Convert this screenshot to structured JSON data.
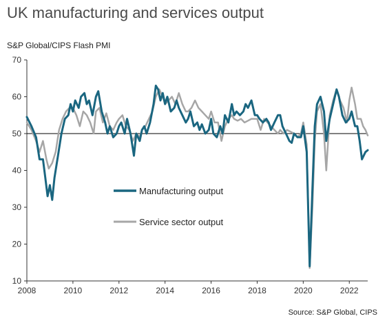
{
  "header": {
    "title": "UK manufacturing and services output",
    "subtitle": "S&P Global/CIPS Flash PMI"
  },
  "footer": {
    "source": "Source: S&P Global, CIPS"
  },
  "colors": {
    "manufacturing": "#1a6680",
    "services": "#a6a6a6",
    "axis": "#333333"
  },
  "chart_data": {
    "type": "line",
    "title": "UK manufacturing and services output",
    "subtitle": "S&P Global/CIPS Flash PMI",
    "xlabel": "",
    "ylabel": "",
    "xlim": [
      2008,
      2022.8
    ],
    "ylim": [
      10,
      70
    ],
    "y_ticks": [
      10,
      20,
      30,
      40,
      50,
      60,
      70
    ],
    "x_ticks": [
      2008,
      2010,
      2012,
      2014,
      2016,
      2018,
      2020,
      2022
    ],
    "reference_line": 50,
    "grid": false,
    "legend": "center-left",
    "series": [
      {
        "name": "Manufacturing output",
        "color": "#1a6680",
        "points": [
          [
            2008.0,
            54.5
          ],
          [
            2008.2,
            52.0
          ],
          [
            2008.4,
            49.0
          ],
          [
            2008.55,
            43.0
          ],
          [
            2008.7,
            43.0
          ],
          [
            2008.8,
            38.0
          ],
          [
            2008.9,
            33.0
          ],
          [
            2009.0,
            36.0
          ],
          [
            2009.1,
            32.0
          ],
          [
            2009.2,
            38.0
          ],
          [
            2009.35,
            44.0
          ],
          [
            2009.5,
            50.0
          ],
          [
            2009.65,
            54.0
          ],
          [
            2009.8,
            55.0
          ],
          [
            2009.9,
            58.0
          ],
          [
            2010.0,
            56.0
          ],
          [
            2010.1,
            59.0
          ],
          [
            2010.25,
            57.0
          ],
          [
            2010.35,
            60.0
          ],
          [
            2010.5,
            61.0
          ],
          [
            2010.6,
            58.0
          ],
          [
            2010.7,
            59.0
          ],
          [
            2010.85,
            55.0
          ],
          [
            2011.0,
            60.0
          ],
          [
            2011.1,
            61.5
          ],
          [
            2011.25,
            56.0
          ],
          [
            2011.4,
            53.0
          ],
          [
            2011.5,
            50.0
          ],
          [
            2011.6,
            52.0
          ],
          [
            2011.75,
            49.0
          ],
          [
            2011.9,
            50.0
          ],
          [
            2012.0,
            52.0
          ],
          [
            2012.1,
            53.0
          ],
          [
            2012.25,
            50.0
          ],
          [
            2012.35,
            54.0
          ],
          [
            2012.5,
            50.0
          ],
          [
            2012.65,
            44.0
          ],
          [
            2012.75,
            50.0
          ],
          [
            2012.9,
            48.0
          ],
          [
            2013.0,
            51.0
          ],
          [
            2013.1,
            52.0
          ],
          [
            2013.2,
            50.0
          ],
          [
            2013.35,
            53.0
          ],
          [
            2013.5,
            58.0
          ],
          [
            2013.6,
            63.0
          ],
          [
            2013.7,
            62.0
          ],
          [
            2013.8,
            59.0
          ],
          [
            2013.9,
            61.0
          ],
          [
            2014.0,
            58.0
          ],
          [
            2014.1,
            60.0
          ],
          [
            2014.25,
            56.0
          ],
          [
            2014.4,
            57.0
          ],
          [
            2014.5,
            59.0
          ],
          [
            2014.6,
            57.0
          ],
          [
            2014.75,
            55.0
          ],
          [
            2014.9,
            53.0
          ],
          [
            2015.0,
            54.0
          ],
          [
            2015.1,
            56.0
          ],
          [
            2015.25,
            52.0
          ],
          [
            2015.4,
            53.0
          ],
          [
            2015.5,
            51.0
          ],
          [
            2015.6,
            52.5
          ],
          [
            2015.75,
            50.0
          ],
          [
            2015.9,
            51.0
          ],
          [
            2016.0,
            54.0
          ],
          [
            2016.1,
            50.0
          ],
          [
            2016.25,
            49.0
          ],
          [
            2016.4,
            52.0
          ],
          [
            2016.5,
            50.0
          ],
          [
            2016.6,
            55.0
          ],
          [
            2016.75,
            53.0
          ],
          [
            2016.9,
            58.0
          ],
          [
            2017.0,
            55.0
          ],
          [
            2017.1,
            56.0
          ],
          [
            2017.25,
            55.0
          ],
          [
            2017.4,
            56.0
          ],
          [
            2017.5,
            58.0
          ],
          [
            2017.6,
            57.0
          ],
          [
            2017.75,
            59.0
          ],
          [
            2017.9,
            55.0
          ],
          [
            2018.0,
            55.0
          ],
          [
            2018.1,
            54.0
          ],
          [
            2018.25,
            53.0
          ],
          [
            2018.4,
            54.0
          ],
          [
            2018.5,
            53.0
          ],
          [
            2018.6,
            51.0
          ],
          [
            2018.75,
            53.0
          ],
          [
            2018.9,
            55.0
          ],
          [
            2019.0,
            55.0
          ],
          [
            2019.1,
            52.0
          ],
          [
            2019.25,
            50.0
          ],
          [
            2019.4,
            48.0
          ],
          [
            2019.5,
            47.5
          ],
          [
            2019.6,
            50.0
          ],
          [
            2019.75,
            49.0
          ],
          [
            2019.9,
            49.0
          ],
          [
            2020.0,
            52.0
          ],
          [
            2020.15,
            45.0
          ],
          [
            2020.28,
            14.0
          ],
          [
            2020.4,
            35.0
          ],
          [
            2020.5,
            52.0
          ],
          [
            2020.6,
            58.0
          ],
          [
            2020.75,
            60.0
          ],
          [
            2020.9,
            56.0
          ],
          [
            2021.0,
            48.0
          ],
          [
            2021.15,
            54.0
          ],
          [
            2021.3,
            58.0
          ],
          [
            2021.45,
            62.0
          ],
          [
            2021.55,
            60.0
          ],
          [
            2021.7,
            55.0
          ],
          [
            2021.85,
            53.0
          ],
          [
            2022.0,
            54.0
          ],
          [
            2022.1,
            56.0
          ],
          [
            2022.25,
            52.0
          ],
          [
            2022.35,
            52.0
          ],
          [
            2022.45,
            48.0
          ],
          [
            2022.55,
            43.0
          ],
          [
            2022.7,
            45.0
          ],
          [
            2022.8,
            45.5
          ]
        ]
      },
      {
        "name": "Service sector output",
        "color": "#a6a6a6",
        "points": [
          [
            2008.0,
            53.0
          ],
          [
            2008.2,
            51.0
          ],
          [
            2008.4,
            48.0
          ],
          [
            2008.55,
            45.0
          ],
          [
            2008.7,
            48.0
          ],
          [
            2008.85,
            43.0
          ],
          [
            2008.95,
            40.5
          ],
          [
            2009.1,
            42.0
          ],
          [
            2009.25,
            45.0
          ],
          [
            2009.4,
            51.0
          ],
          [
            2009.55,
            54.0
          ],
          [
            2009.7,
            56.0
          ],
          [
            2009.85,
            57.0
          ],
          [
            2010.0,
            57.0
          ],
          [
            2010.15,
            55.0
          ],
          [
            2010.3,
            52.0
          ],
          [
            2010.45,
            56.0
          ],
          [
            2010.6,
            55.0
          ],
          [
            2010.75,
            53.0
          ],
          [
            2010.9,
            50.0
          ],
          [
            2011.0,
            56.0
          ],
          [
            2011.15,
            57.0
          ],
          [
            2011.3,
            53.0
          ],
          [
            2011.45,
            55.5
          ],
          [
            2011.6,
            52.0
          ],
          [
            2011.75,
            51.0
          ],
          [
            2011.9,
            53.0
          ],
          [
            2012.0,
            54.0
          ],
          [
            2012.15,
            55.0
          ],
          [
            2012.3,
            52.0
          ],
          [
            2012.45,
            51.0
          ],
          [
            2012.6,
            48.0
          ],
          [
            2012.75,
            50.0
          ],
          [
            2012.9,
            49.0
          ],
          [
            2013.0,
            51.0
          ],
          [
            2013.15,
            52.0
          ],
          [
            2013.3,
            54.0
          ],
          [
            2013.45,
            56.0
          ],
          [
            2013.6,
            60.0
          ],
          [
            2013.75,
            62.0
          ],
          [
            2013.9,
            60.0
          ],
          [
            2014.0,
            58.0
          ],
          [
            2014.15,
            59.0
          ],
          [
            2014.3,
            60.0
          ],
          [
            2014.45,
            58.0
          ],
          [
            2014.6,
            61.0
          ],
          [
            2014.75,
            58.0
          ],
          [
            2014.9,
            56.0
          ],
          [
            2015.0,
            56.0
          ],
          [
            2015.15,
            57.0
          ],
          [
            2015.3,
            59.0
          ],
          [
            2015.45,
            57.0
          ],
          [
            2015.6,
            56.0
          ],
          [
            2015.75,
            55.0
          ],
          [
            2015.9,
            54.0
          ],
          [
            2016.0,
            56.0
          ],
          [
            2016.15,
            53.0
          ],
          [
            2016.3,
            53.0
          ],
          [
            2016.45,
            48.0
          ],
          [
            2016.6,
            52.0
          ],
          [
            2016.75,
            54.0
          ],
          [
            2016.9,
            55.0
          ],
          [
            2017.0,
            54.0
          ],
          [
            2017.15,
            53.5
          ],
          [
            2017.3,
            54.0
          ],
          [
            2017.45,
            53.0
          ],
          [
            2017.6,
            53.5
          ],
          [
            2017.75,
            54.0
          ],
          [
            2017.9,
            54.0
          ],
          [
            2018.0,
            54.0
          ],
          [
            2018.15,
            51.0
          ],
          [
            2018.3,
            54.0
          ],
          [
            2018.45,
            53.0
          ],
          [
            2018.6,
            52.0
          ],
          [
            2018.75,
            51.0
          ],
          [
            2018.9,
            50.0
          ],
          [
            2019.0,
            51.0
          ],
          [
            2019.15,
            50.0
          ],
          [
            2019.3,
            51.0
          ],
          [
            2019.45,
            50.5
          ],
          [
            2019.6,
            50.0
          ],
          [
            2019.75,
            49.0
          ],
          [
            2019.9,
            50.0
          ],
          [
            2020.0,
            53.0
          ],
          [
            2020.15,
            47.0
          ],
          [
            2020.28,
            13.5
          ],
          [
            2020.4,
            30.0
          ],
          [
            2020.5,
            48.0
          ],
          [
            2020.6,
            56.0
          ],
          [
            2020.75,
            58.0
          ],
          [
            2020.9,
            50.0
          ],
          [
            2021.0,
            40.0
          ],
          [
            2021.15,
            55.0
          ],
          [
            2021.3,
            59.0
          ],
          [
            2021.45,
            62.0
          ],
          [
            2021.6,
            59.0
          ],
          [
            2021.75,
            57.0
          ],
          [
            2021.9,
            53.0
          ],
          [
            2022.0,
            59.0
          ],
          [
            2022.1,
            62.5
          ],
          [
            2022.25,
            58.0
          ],
          [
            2022.35,
            54.0
          ],
          [
            2022.5,
            54.0
          ],
          [
            2022.6,
            52.0
          ],
          [
            2022.7,
            51.0
          ],
          [
            2022.8,
            49.5
          ]
        ]
      }
    ]
  }
}
